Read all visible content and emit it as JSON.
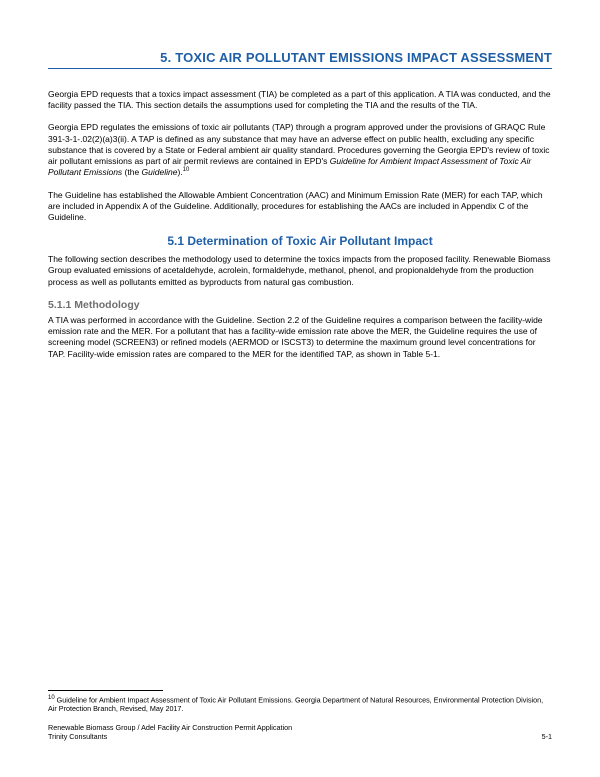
{
  "colors": {
    "heading": "#1f5fa8",
    "subheading_h3": "#6f6f6f",
    "body_text": "#000000",
    "background": "#ffffff",
    "rule": "#1f5fa8"
  },
  "typography": {
    "h1_fontsize": 13,
    "h2_fontsize": 12,
    "h3_fontsize": 10.5,
    "body_fontsize": 8.5,
    "footnote_fontsize": 7.2,
    "font_family": "Tahoma, Verdana, Geneva, sans-serif"
  },
  "section": {
    "number": "5.",
    "title": "TOXIC AIR POLLUTANT EMISSIONS IMPACT ASSESSMENT",
    "full": "5.  TOXIC AIR POLLUTANT EMISSIONS IMPACT ASSESSMENT"
  },
  "paragraphs": {
    "p1": "Georgia EPD requests that a toxics impact assessment (TIA) be completed as a part of this application. A TIA was conducted, and the facility passed the TIA. This section details the assumptions used for completing the TIA and the results of the TIA.",
    "p2a": "Georgia EPD regulates the emissions of toxic air pollutants (TAP) through a program approved under the provisions of GRAQC Rule 391-3-1-.02(2)(a)3(ii). A TAP is defined as any substance that may have an adverse effect on public health, excluding any specific substance that is covered by a State or Federal ambient air quality standard. Procedures governing the Georgia EPD's review of toxic air pollutant emissions as part of air permit reviews are contained in EPD's ",
    "p2_ital": "Guideline for Ambient Impact Assessment of Toxic Air Pollutant Emissions",
    "p2b": " (the ",
    "p2_ital2": "Guideline",
    "p2c": ").",
    "p2_fn": "10",
    "p3": "The Guideline has established the Allowable Ambient Concentration (AAC) and Minimum Emission Rate (MER) for each TAP, which are included in Appendix A of the Guideline. Additionally, procedures for establishing the AACs are included in Appendix C of the Guideline."
  },
  "subsection_5_1": {
    "heading": "5.1  Determination of Toxic Air Pollutant Impact",
    "p1": "The following section describes the methodology used to determine the toxics impacts from the proposed facility. Renewable Biomass Group evaluated emissions of acetaldehyde, acrolein, formaldehyde, methanol, phenol, and propionaldehyde from the production process as well as pollutants emitted as byproducts from natural gas combustion."
  },
  "subsection_5_1_1": {
    "heading": "5.1.1   Methodology",
    "p1": "A TIA was performed in accordance with the Guideline. Section 2.2 of the Guideline requires a comparison between the facility-wide emission rate and the MER. For a pollutant that has a facility-wide emission rate above the MER, the Guideline requires the use of screening model (SCREEN3) or refined models (AERMOD or ISCST3) to determine the maximum ground level concentrations for TAP. Facility-wide emission rates are compared to the MER for the identified TAP, as shown in Table 5-1."
  },
  "footnote": {
    "marker": "10",
    "text": " Guideline for Ambient Impact Assessment of Toxic Air Pollutant Emissions. Georgia Department of Natural Resources, Environmental Protection Division, Air Protection Branch, Revised, May 2017."
  },
  "footer": {
    "line1": "Renewable Biomass Group / Adel Facility Air Construction Permit Application",
    "line2": "Trinity Consultants",
    "page_number": "5-1"
  }
}
